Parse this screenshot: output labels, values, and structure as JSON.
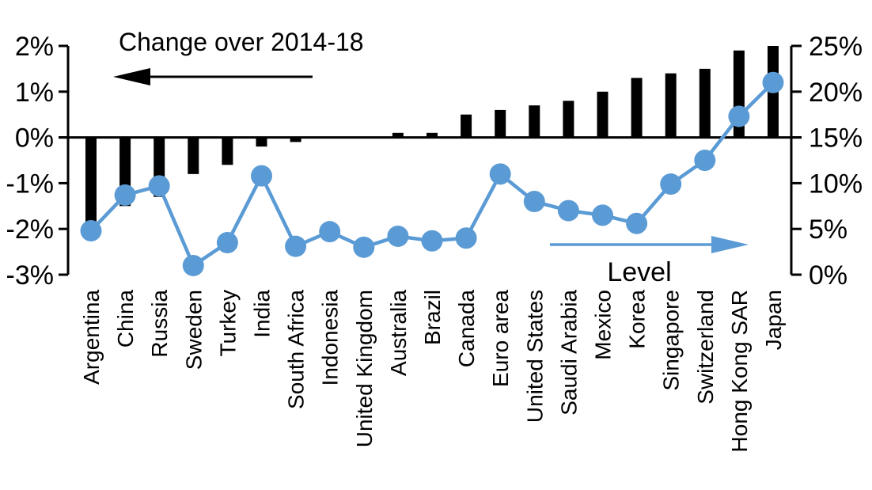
{
  "chart_data": {
    "type": "combo-bar-line",
    "categories": [
      "Argentina",
      "China",
      "Russia",
      "Sweden",
      "Turkey",
      "India",
      "South Africa",
      "Indonesia",
      "United Kingdom",
      "Australia",
      "Brazil",
      "Canada",
      "Euro area",
      "United States",
      "Saudi Arabia",
      "Mexico",
      "Korea",
      "Singapore",
      "Switzerland",
      "Hong Kong SAR",
      "Japan"
    ],
    "series": [
      {
        "name": "Change over 2014-18",
        "type": "bar",
        "axis": "left",
        "color": "#000000",
        "values": [
          -1.9,
          -1.5,
          -1.3,
          -0.8,
          -0.6,
          -0.2,
          -0.1,
          0,
          0,
          0.1,
          0.1,
          0.5,
          0.6,
          0.7,
          0.8,
          1.0,
          1.3,
          1.4,
          1.5,
          1.9,
          2.0
        ]
      },
      {
        "name": "Level",
        "type": "line",
        "axis": "right",
        "color": "#5B9BD5",
        "values": [
          4.8,
          8.7,
          9.7,
          1.0,
          3.5,
          10.8,
          3.1,
          4.7,
          3.0,
          4.2,
          3.7,
          4.0,
          11.0,
          8.0,
          7.0,
          6.5,
          5.6,
          9.9,
          12.5,
          17.3,
          21.0
        ]
      }
    ],
    "left_axis": {
      "min": -3,
      "max": 2,
      "step": 1,
      "tick_labels": [
        "2%",
        "1%",
        "0%",
        "-1%",
        "-2%",
        "-3%"
      ],
      "tick_values": [
        2,
        1,
        0,
        -1,
        -2,
        -3
      ]
    },
    "right_axis": {
      "min": 0,
      "max": 25,
      "step": 5,
      "tick_labels": [
        "25%",
        "20%",
        "15%",
        "10%",
        "5%",
        "0%"
      ],
      "tick_values": [
        25,
        20,
        15,
        10,
        5,
        0
      ]
    },
    "annotations": {
      "bar_series_label": "Change over 2014-18",
      "line_series_label": "Level"
    },
    "colors": {
      "bar": "#000000",
      "line": "#5B9BD5",
      "axis": "#000000",
      "background": "#ffffff"
    },
    "grid": false,
    "legend_position": "in-plot-annotations"
  }
}
